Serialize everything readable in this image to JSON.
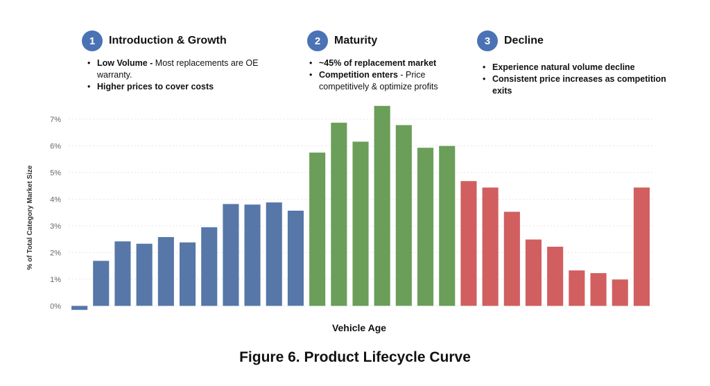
{
  "phases": [
    {
      "number": "1",
      "title": "Introduction & Growth",
      "bullets": [
        {
          "bold": "Low Volume -",
          "text": " Most replacements are OE warranty."
        },
        {
          "bold": "Higher prices to cover costs",
          "text": ""
        }
      ]
    },
    {
      "number": "2",
      "title": "Maturity",
      "bullets": [
        {
          "bold": "~45% of replacement market",
          "text": ""
        },
        {
          "bold": "Competition enters",
          "text": "  - Price competitively & optimize profits"
        }
      ]
    },
    {
      "number": "3",
      "title": "Decline",
      "bullets": [
        {
          "bold": "Experience natural volume decline",
          "text": ""
        },
        {
          "bold": "Consistent price increases as competition exits",
          "text": ""
        }
      ]
    }
  ],
  "colors": {
    "phase_badge": "#4a72b5",
    "blue": "#5677a8",
    "green": "#6a9e59",
    "red": "#d15f5f",
    "grid": "#e6e6e6"
  },
  "chart_data": {
    "type": "bar",
    "title": "",
    "xlabel": "Vehicle Age",
    "ylabel": "% of Total Category Market Size",
    "ylim": [
      -0.0025,
      0.076
    ],
    "yticks": [
      0,
      0.01,
      0.02,
      0.03,
      0.04,
      0.05,
      0.06,
      0.07
    ],
    "ytick_labels": [
      "0%",
      "1%",
      "2%",
      "3%",
      "4%",
      "5%",
      "6%",
      "7%"
    ],
    "grid": "horizontal dotted",
    "legend": "none",
    "values": [
      -0.0015,
      0.0169,
      0.0242,
      0.0233,
      0.0258,
      0.0238,
      0.0295,
      0.0382,
      0.038,
      0.0388,
      0.0357,
      0.0575,
      0.0687,
      0.0616,
      0.075,
      0.0678,
      0.0593,
      0.06,
      0.0468,
      0.0444,
      0.0353,
      0.0249,
      0.0222,
      0.0133,
      0.0123,
      0.0099,
      0.0444
    ],
    "bar_phase": [
      "blue",
      "blue",
      "blue",
      "blue",
      "blue",
      "blue",
      "blue",
      "blue",
      "blue",
      "blue",
      "blue",
      "green",
      "green",
      "green",
      "green",
      "green",
      "green",
      "green",
      "red",
      "red",
      "red",
      "red",
      "red",
      "red",
      "red",
      "red",
      "red"
    ]
  },
  "caption": "Figure 6. Product Lifecycle Curve"
}
